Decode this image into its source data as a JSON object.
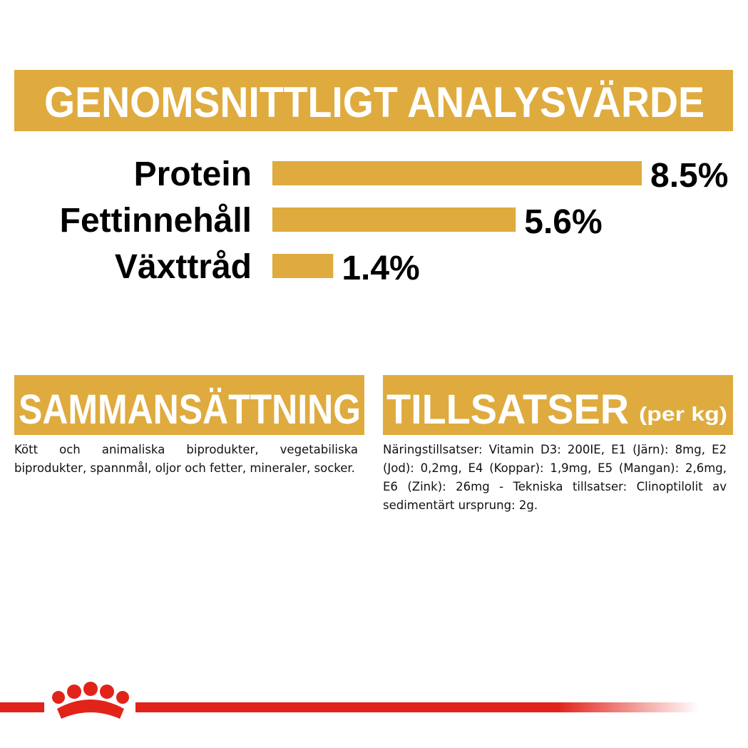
{
  "chart_data": {
    "type": "bar",
    "orientation": "horizontal",
    "title": "GENOMSNITTLIGT ANALYSVÄRDE",
    "categories": [
      "Protein",
      "Fettinnehåll",
      "Växttråd"
    ],
    "values": [
      8.5,
      5.6,
      1.4
    ],
    "value_labels": [
      "8.5%",
      "5.6%",
      "1.4%"
    ],
    "color": "#dfab3e"
  },
  "composition": {
    "title": "SAMMANSÄTTNING",
    "text": "Kött och animaliska biprodukter, vegetabiliska biprodukter, spannmål, oljor och fetter, mineraler, socker."
  },
  "additives": {
    "title": "TILLSATSER",
    "title_suffix": "(per kg)",
    "text": "Näringstillsatser: Vitamin D3: 200IE, E1 (Järn): 8mg, E2 (Jod): 0,2mg, E4 (Koppar): 1,9mg, E5 (Mangan): 2,6mg, E6 (Zink): 26mg - Tekniska tillsatser: Clinoptilolit av sedimentärt ursprung: 2g."
  }
}
